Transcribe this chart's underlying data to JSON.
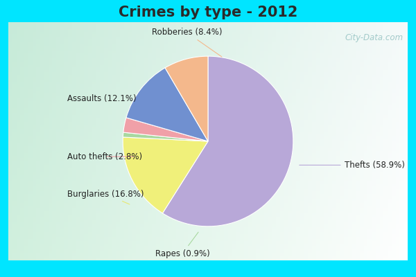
{
  "title": "Crimes by type - 2012",
  "labels": [
    "Thefts",
    "Burglaries",
    "Rapes",
    "Auto thefts",
    "Assaults",
    "Robberies"
  ],
  "values": [
    58.9,
    16.8,
    0.9,
    2.8,
    12.1,
    8.4
  ],
  "colors": [
    "#b8a8d8",
    "#f0f07a",
    "#a8d8a0",
    "#f0a0a8",
    "#7090d0",
    "#f4b88c"
  ],
  "outer_bg": "#00e5ff",
  "title_color": "#2a2a2a",
  "title_fontsize": 15,
  "label_fontsize": 8.5,
  "startangle": 90,
  "watermark": "City-Data.com"
}
